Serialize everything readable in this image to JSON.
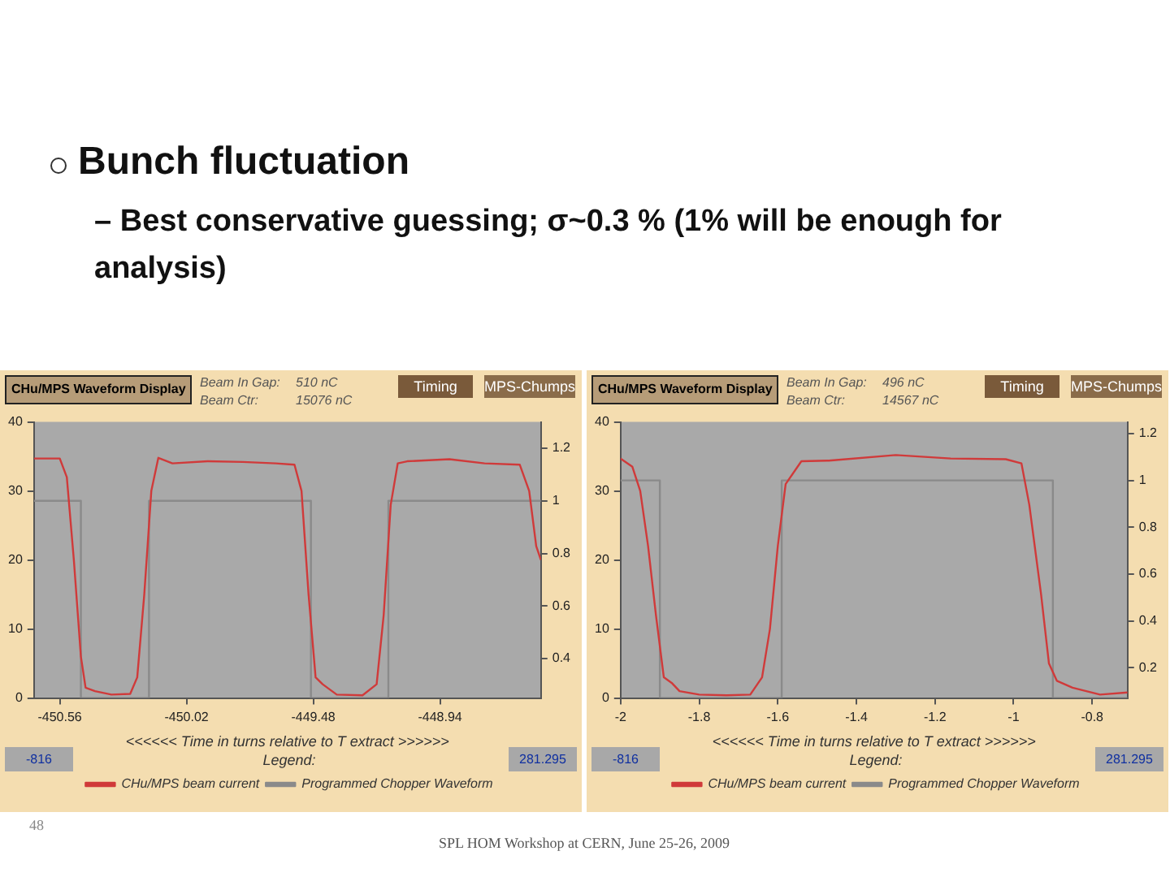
{
  "chart_data": [
    {
      "type": "line",
      "title": "CHu/MPS Waveform Display",
      "xlabel": "<<<<<< Time in turns relative to T extract >>>>>>",
      "legend": "bottom",
      "legend_title": "Legend:",
      "marker": "none",
      "xlim": [
        -450.67,
        -448.51
      ],
      "xticks": [
        -450.56,
        -450.02,
        -449.48,
        -448.94
      ],
      "ylim": [
        0,
        40
      ],
      "yticks": [
        0,
        10,
        20,
        30,
        40
      ],
      "y2lim": [
        0.25,
        1.3
      ],
      "y2ticks": [
        0.4,
        0.6,
        0.8,
        1,
        1.2
      ],
      "series": [
        {
          "name": "CHu/MPS beam current",
          "color": "#d03a3a",
          "x": [
            -450.67,
            -450.56,
            -450.53,
            -450.5,
            -450.47,
            -450.45,
            -450.41,
            -450.34,
            -450.26,
            -450.23,
            -450.2,
            -450.17,
            -450.14,
            -450.08,
            -449.93,
            -449.78,
            -449.64,
            -449.56,
            -449.53,
            -449.5,
            -449.47,
            -449.44,
            -449.38,
            -449.27,
            -449.21,
            -449.18,
            -449.15,
            -449.12,
            -449.08,
            -448.9,
            -448.75,
            -448.6,
            -448.56,
            -448.53,
            -448.51
          ],
          "values": [
            34.7,
            34.7,
            32,
            20,
            6,
            1.5,
            1,
            0.5,
            0.6,
            3,
            15,
            30,
            34.8,
            34,
            34.3,
            34.2,
            34,
            33.8,
            30,
            15,
            3,
            2,
            0.5,
            0.4,
            2,
            12,
            28,
            34,
            34.3,
            34.6,
            34,
            33.8,
            30,
            22,
            20
          ]
        },
        {
          "name": "Programmed Chopper Waveform",
          "color": "#8a8a8a",
          "axis": "y2",
          "x": [
            -450.67,
            -450.47,
            -450.47,
            -450.18,
            -450.18,
            -449.49,
            -449.49,
            -449.16,
            -449.16,
            -448.51
          ],
          "values": [
            1,
            1,
            0.25,
            0.25,
            1,
            1,
            0.25,
            0.25,
            1,
            1
          ]
        }
      ],
      "annotations": [
        "Beam In Gap:",
        "510 nC",
        "Beam Ctr:",
        "15076 nC",
        "Timing",
        "MPS-Chumps",
        "-816",
        "281.295",
        "Bunch fluctuation",
        "– Best conservative guessing; σ~0.3 % (1% will be enough for analysis)"
      ]
    },
    {
      "type": "line",
      "title": "CHu/MPS Waveform Display",
      "xlabel": "<<<<<< Time in turns relative to T extract >>>>>>",
      "legend": "bottom",
      "legend_title": "Legend:",
      "marker": "none",
      "xlim": [
        -2,
        -0.71
      ],
      "xticks": [
        -2,
        -1.8,
        -1.6,
        -1.4,
        -1.2,
        -1,
        -0.8
      ],
      "ylim": [
        0,
        40
      ],
      "yticks": [
        0,
        10,
        20,
        30,
        40
      ],
      "y2lim": [
        0.07,
        1.25
      ],
      "y2ticks": [
        0.2,
        0.4,
        0.6,
        0.8,
        1,
        1.2
      ],
      "series": [
        {
          "name": "CHu/MPS beam current",
          "color": "#d03a3a",
          "x": [
            -2,
            -1.97,
            -1.95,
            -1.93,
            -1.91,
            -1.89,
            -1.87,
            -1.85,
            -1.8,
            -1.73,
            -1.67,
            -1.64,
            -1.62,
            -1.6,
            -1.58,
            -1.54,
            -1.47,
            -1.3,
            -1.16,
            -1.02,
            -0.98,
            -0.96,
            -0.93,
            -0.91,
            -0.89,
            -0.85,
            -0.78,
            -0.71
          ],
          "values": [
            34.7,
            33.5,
            30,
            22,
            12,
            3,
            2.2,
            1,
            0.5,
            0.4,
            0.5,
            3,
            10,
            22,
            31,
            34.3,
            34.4,
            35.2,
            34.7,
            34.6,
            34,
            28,
            15,
            5,
            2.5,
            1.5,
            0.5,
            0.8
          ]
        },
        {
          "name": "Programmed Chopper Waveform",
          "color": "#8a8a8a",
          "axis": "y2",
          "x": [
            -2,
            -1.9,
            -1.9,
            -1.59,
            -1.59,
            -0.9,
            -0.9,
            -0.71
          ],
          "values": [
            1,
            1,
            0.07,
            0.07,
            1,
            1,
            0.07,
            0.07
          ]
        }
      ],
      "annotations": [
        "Beam In Gap:",
        "496 nC",
        "Beam Ctr:",
        "14567 nC",
        "Timing",
        "MPS-Chumps",
        "-816",
        "281.295",
        "48",
        "SPL HOM Workshop at CERN, June 25-26, 2009"
      ]
    }
  ]
}
